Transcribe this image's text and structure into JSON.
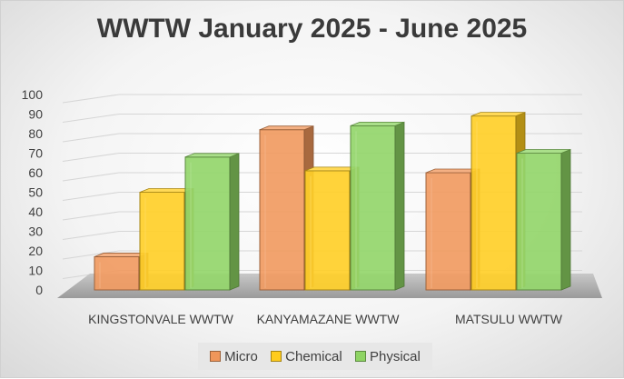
{
  "chart_data": {
    "type": "bar",
    "title": "WWTW January 2025 - June 2025",
    "categories": [
      "KINGSTONVALE WWTW",
      "KANYAMAZANE WWTW",
      "MATSULU WWTW"
    ],
    "series": [
      {
        "name": "Micro",
        "values": [
          17,
          82,
          60
        ],
        "color": "#f0965a"
      },
      {
        "name": "Chemical",
        "values": [
          50,
          61,
          89
        ],
        "color": "#ffcc1e"
      },
      {
        "name": "Physical",
        "values": [
          68,
          84,
          70
        ],
        "color": "#8ed463"
      }
    ],
    "ylim": [
      0,
      100
    ],
    "yticks": [
      0,
      10,
      20,
      30,
      40,
      50,
      60,
      70,
      80,
      90,
      100
    ],
    "grid": true,
    "legend_position": "bottom",
    "style": "3d-clustered-column"
  }
}
